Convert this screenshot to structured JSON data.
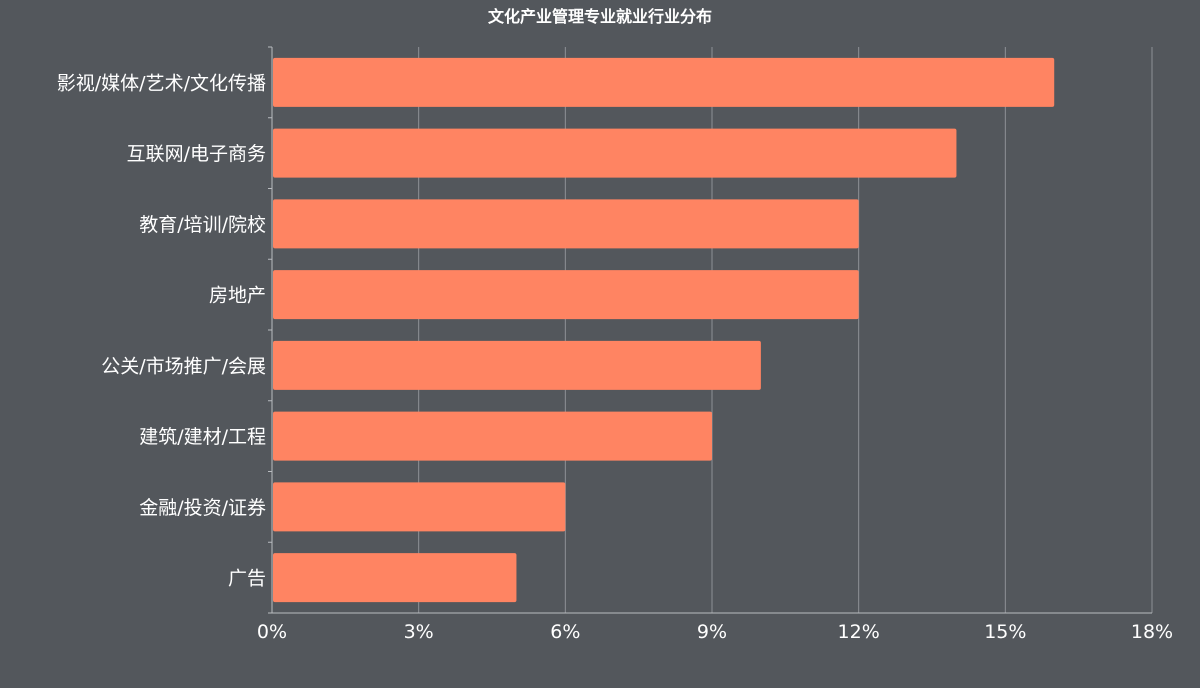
{
  "colors": {
    "background": "#53575c",
    "bar": "#ff8462",
    "text": "#ffffff",
    "grid": "#8e9196",
    "axis": "#b9bcc0"
  },
  "chart_data": {
    "type": "bar",
    "orientation": "horizontal",
    "title": "文化产业管理专业就业行业分布",
    "xlabel": "",
    "ylabel": "",
    "categories": [
      "影视/媒体/艺术/文化传播",
      "互联网/电子商务",
      "教育/培训/院校",
      "房地产",
      "公关/市场推广/会展",
      "建筑/建材/工程",
      "金融/投资/证券",
      "广告"
    ],
    "values": [
      16,
      14,
      12,
      12,
      10,
      9,
      6,
      5
    ],
    "unit": "%",
    "xlim": [
      0,
      18
    ],
    "xticks": [
      "0%",
      "3%",
      "6%",
      "9%",
      "12%",
      "15%",
      "18%"
    ],
    "grid": "vertical",
    "legend": "none"
  }
}
